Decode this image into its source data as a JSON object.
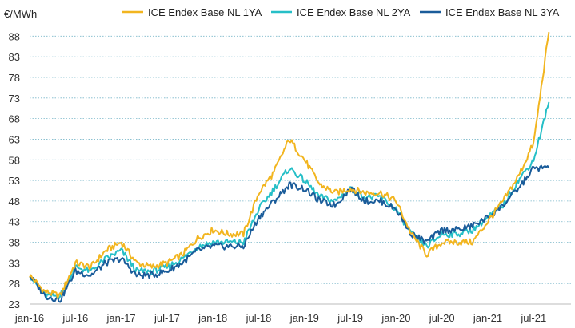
{
  "chart_data": {
    "type": "line",
    "ylabel": "€/MWh",
    "ylim": [
      23,
      90
    ],
    "yticks": [
      23,
      28,
      33,
      38,
      43,
      48,
      53,
      58,
      63,
      68,
      73,
      78,
      83,
      88
    ],
    "xticks": [
      "jan-16",
      "jul-16",
      "jan-17",
      "jul-17",
      "jan-18",
      "jul-18",
      "jan-19",
      "jul-19",
      "jan-20",
      "jul-20",
      "jan-21",
      "jul-21"
    ],
    "grid": "horizontal-dotted",
    "legend_position": "top",
    "x_dates": [
      "2016-01",
      "2016-03",
      "2016-05",
      "2016-07",
      "2016-09",
      "2016-11",
      "2017-01",
      "2017-03",
      "2017-05",
      "2017-07",
      "2017-09",
      "2017-11",
      "2018-01",
      "2018-03",
      "2018-05",
      "2018-07",
      "2018-09",
      "2018-11",
      "2019-01",
      "2019-03",
      "2019-05",
      "2019-07",
      "2019-09",
      "2019-11",
      "2020-01",
      "2020-03",
      "2020-05",
      "2020-07",
      "2020-09",
      "2020-11",
      "2021-01",
      "2021-03",
      "2021-05",
      "2021-07",
      "2021-09"
    ],
    "series": [
      {
        "name": "ICE Endex Base NL 1YA",
        "color": "#F2B51F",
        "values": [
          30,
          26,
          25,
          33,
          32,
          36,
          38,
          33,
          32,
          33,
          35,
          39,
          41,
          40,
          40,
          50,
          55,
          63,
          58,
          52,
          50,
          51,
          50,
          50,
          48,
          40,
          35,
          38,
          38,
          38,
          43,
          48,
          54,
          62,
          89
        ]
      },
      {
        "name": "ICE Endex Base NL 2YA",
        "color": "#26BFC7",
        "values": [
          30,
          25,
          25,
          32,
          31,
          34,
          36,
          31,
          31,
          32,
          34,
          37,
          38,
          38,
          38,
          46,
          51,
          56,
          53,
          49,
          48,
          51,
          49,
          49,
          46,
          40,
          37,
          40,
          40,
          41,
          44,
          47,
          53,
          58,
          72
        ]
      },
      {
        "name": "ICE Endex Base NL 3YA",
        "color": "#1A5C9A",
        "values": [
          30,
          25,
          24,
          31,
          30,
          33,
          34,
          30,
          30,
          31,
          33,
          36,
          37,
          37,
          37,
          44,
          48,
          52,
          51,
          48,
          47,
          51,
          48,
          48,
          46,
          40,
          38,
          41,
          41,
          42,
          44,
          47,
          51,
          56,
          56
        ]
      }
    ]
  }
}
